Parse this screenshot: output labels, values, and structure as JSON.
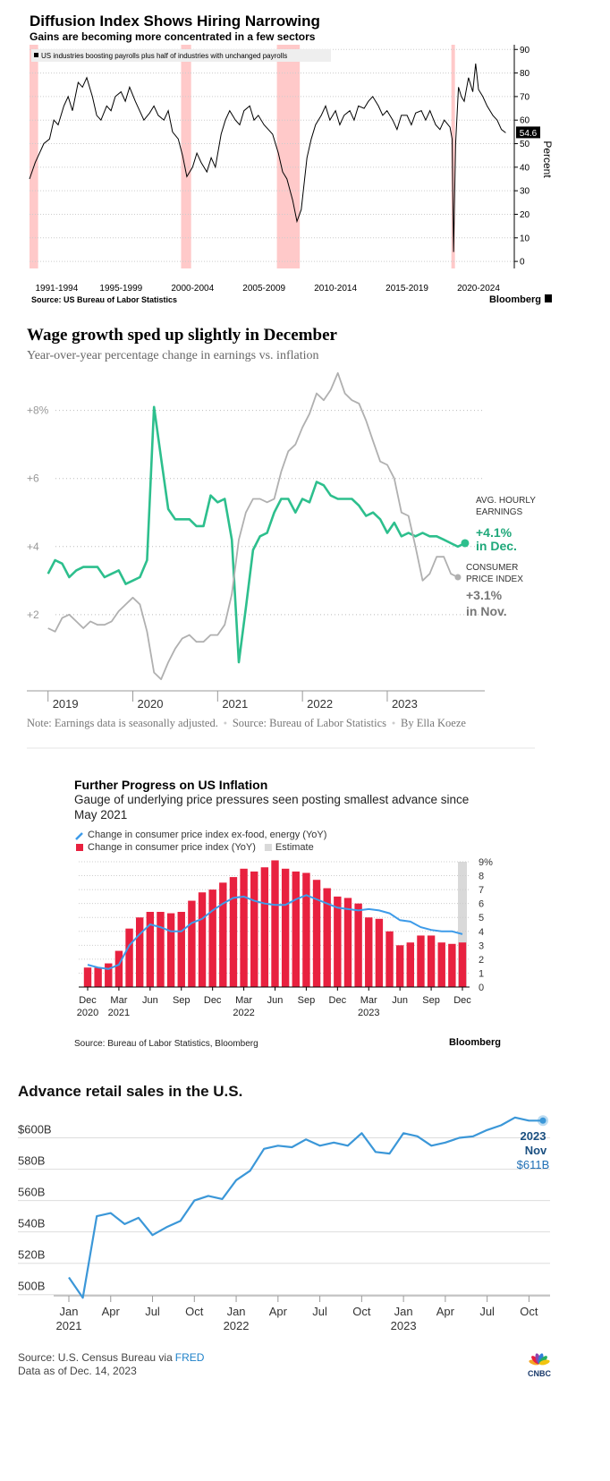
{
  "chart_data": [
    {
      "type": "line",
      "title": "Diffusion Index Shows Hiring Narrowing",
      "subtitle": "Gains are becoming more concentrated in a few sectors",
      "x": [
        1990.6,
        1991.0,
        1991.3,
        1991.6,
        1992.0,
        1992.3,
        1992.6,
        1993.0,
        1993.3,
        1993.6,
        1994.0,
        1994.3,
        1994.6,
        1995.0,
        1995.3,
        1995.6,
        1996.0,
        1996.3,
        1996.6,
        1997.0,
        1997.3,
        1997.6,
        1998.0,
        1998.3,
        1998.6,
        1999.0,
        1999.3,
        1999.6,
        2000.0,
        2000.3,
        2000.6,
        2001.0,
        2001.3,
        2001.6,
        2002.0,
        2002.3,
        2002.6,
        2003.0,
        2003.3,
        2003.6,
        2004.0,
        2004.3,
        2004.6,
        2005.0,
        2005.3,
        2005.6,
        2006.0,
        2006.3,
        2006.6,
        2007.0,
        2007.3,
        2007.6,
        2008.0,
        2008.3,
        2008.6,
        2009.0,
        2009.3,
        2009.6,
        2010.0,
        2010.3,
        2010.6,
        2011.0,
        2011.3,
        2011.6,
        2012.0,
        2012.3,
        2012.6,
        2013.0,
        2013.3,
        2013.6,
        2014.0,
        2014.3,
        2014.6,
        2015.0,
        2015.3,
        2015.6,
        2016.0,
        2016.3,
        2016.6,
        2017.0,
        2017.3,
        2017.6,
        2018.0,
        2018.3,
        2018.6,
        2019.0,
        2019.3,
        2019.6,
        2020.0,
        2020.15,
        2020.25,
        2020.4,
        2020.6,
        2020.8,
        2021.0,
        2021.3,
        2021.6,
        2021.8,
        2022.0,
        2022.3,
        2022.6,
        2023.0,
        2023.3,
        2023.6,
        2023.9
      ],
      "series": [
        {
          "name": "US industries boosting payrolls plus half of industries with unchanged payrolls",
          "color": "#000000",
          "values": [
            35,
            42,
            46,
            50,
            52,
            60,
            58,
            66,
            70,
            64,
            76,
            74,
            78,
            70,
            62,
            60,
            66,
            64,
            70,
            72,
            68,
            74,
            68,
            64,
            60,
            63,
            66,
            62,
            60,
            64,
            55,
            52,
            45,
            36,
            40,
            46,
            42,
            38,
            44,
            40,
            54,
            60,
            64,
            60,
            58,
            64,
            66,
            60,
            62,
            58,
            56,
            54,
            46,
            38,
            35,
            26,
            17,
            22,
            44,
            52,
            58,
            62,
            66,
            60,
            64,
            58,
            62,
            64,
            60,
            66,
            65,
            68,
            70,
            66,
            62,
            64,
            60,
            56,
            62,
            62,
            58,
            63,
            64,
            60,
            64,
            58,
            56,
            60,
            57,
            52,
            4,
            50,
            74,
            70,
            68,
            78,
            72,
            84,
            73,
            70,
            66,
            62,
            60,
            56,
            54.6
          ]
        }
      ],
      "xlim": [
        1990.6,
        2024.5
      ],
      "xticks": [
        {
          "value": 1992.5,
          "label": "1991-1994"
        },
        {
          "value": 1997,
          "label": "1995-1999"
        },
        {
          "value": 2002,
          "label": "2000-2004"
        },
        {
          "value": 2007,
          "label": "2005-2009"
        },
        {
          "value": 2012,
          "label": "2010-2014"
        },
        {
          "value": 2017,
          "label": "2015-2019"
        },
        {
          "value": 2022,
          "label": "2020-2024"
        }
      ],
      "ylim": [
        -3,
        92
      ],
      "yticks": [
        0,
        10,
        20,
        30,
        40,
        50,
        60,
        70,
        80,
        90
      ],
      "y_label": "Percent",
      "recessions": [
        [
          1990.6,
          1991.2
        ],
        [
          2001.2,
          2001.9
        ],
        [
          2007.9,
          2009.5
        ],
        [
          2020.1,
          2020.35
        ]
      ],
      "recession_color": "#ffc9c9",
      "source": "Source: US Bureau of Labor Statistics",
      "brand": "Bloomberg"
    },
    {
      "type": "line",
      "title": "Wage growth sped up slightly in December",
      "subtitle": "Year-over-year percentage change in earnings vs. inflation",
      "x": [
        2019.0,
        2019.083,
        2019.167,
        2019.25,
        2019.333,
        2019.417,
        2019.5,
        2019.583,
        2019.667,
        2019.75,
        2019.833,
        2019.917,
        2020.0,
        2020.083,
        2020.167,
        2020.25,
        2020.333,
        2020.417,
        2020.5,
        2020.583,
        2020.667,
        2020.75,
        2020.833,
        2020.917,
        2021.0,
        2021.083,
        2021.167,
        2021.25,
        2021.333,
        2021.417,
        2021.5,
        2021.583,
        2021.667,
        2021.75,
        2021.833,
        2021.917,
        2022.0,
        2022.083,
        2022.167,
        2022.25,
        2022.333,
        2022.417,
        2022.5,
        2022.583,
        2022.667,
        2022.75,
        2022.833,
        2022.917,
        2023.0,
        2023.083,
        2023.167,
        2023.25,
        2023.333,
        2023.417,
        2023.5,
        2023.583,
        2023.667,
        2023.75,
        2023.833,
        2023.917
      ],
      "series": [
        {
          "name": "AVG. HOURLY EARNINGS",
          "color": "#2dbf8d",
          "end_label": "+4.1%",
          "end_note": "in Dec.",
          "values": [
            3.2,
            3.6,
            3.5,
            3.1,
            3.3,
            3.4,
            3.4,
            3.4,
            3.1,
            3.2,
            3.3,
            2.9,
            3.0,
            3.1,
            3.6,
            8.1,
            6.6,
            5.1,
            4.8,
            4.8,
            4.8,
            4.6,
            4.6,
            5.5,
            5.3,
            5.4,
            4.2,
            0.6,
            2.2,
            3.9,
            4.3,
            4.4,
            5.0,
            5.4,
            5.4,
            5.0,
            5.4,
            5.3,
            5.9,
            5.8,
            5.5,
            5.4,
            5.4,
            5.4,
            5.2,
            4.9,
            5.0,
            4.8,
            4.4,
            4.7,
            4.3,
            4.4,
            4.3,
            4.4,
            4.3,
            4.3,
            4.2,
            4.1,
            4.0,
            4.1
          ]
        },
        {
          "name": "CONSUMER PRICE INDEX",
          "color": "#b0b0b0",
          "end_label": "+3.1%",
          "end_note": "in Nov.",
          "values": [
            1.6,
            1.5,
            1.9,
            2.0,
            1.8,
            1.6,
            1.8,
            1.7,
            1.7,
            1.8,
            2.1,
            2.3,
            2.5,
            2.3,
            1.5,
            0.3,
            0.1,
            0.6,
            1.0,
            1.3,
            1.4,
            1.2,
            1.2,
            1.4,
            1.4,
            1.7,
            2.6,
            4.2,
            5.0,
            5.4,
            5.4,
            5.3,
            5.4,
            6.2,
            6.8,
            7.0,
            7.5,
            7.9,
            8.5,
            8.3,
            8.6,
            9.1,
            8.5,
            8.3,
            8.2,
            7.7,
            7.1,
            6.5,
            6.4,
            6.0,
            5.0,
            4.9,
            4.0,
            3.0,
            3.2,
            3.7,
            3.7,
            3.2,
            3.1,
            null
          ]
        }
      ],
      "xlim": [
        2018.75,
        2024.15
      ],
      "xticks": [
        2019,
        2020,
        2021,
        2022,
        2023
      ],
      "ylim": [
        -0.24,
        9.2
      ],
      "yticks": [
        {
          "value": 2,
          "label": "+2"
        },
        {
          "value": 4,
          "label": "+4"
        },
        {
          "value": 6,
          "label": "+6"
        },
        {
          "value": 8,
          "label": "+8%"
        }
      ],
      "notes": [
        "Note: Earnings data is seasonally adjusted.",
        "Source: Bureau of Labor Statistics",
        "By Ella Koeze"
      ]
    },
    {
      "type": "combo",
      "title": "Further Progress on US Inflation",
      "subtitle": "Gauge of underlying price pressures seen posting smallest advance since May 2021",
      "categories": [
        "Dec 2020",
        null,
        null,
        "Mar 2021",
        null,
        null,
        "Jun",
        null,
        null,
        "Sep",
        null,
        null,
        "Dec",
        null,
        null,
        "Mar 2022",
        null,
        null,
        "Jun",
        null,
        null,
        "Sep",
        null,
        null,
        "Dec",
        null,
        null,
        "Mar 2023",
        null,
        null,
        "Jun",
        null,
        null,
        "Sep",
        null,
        null,
        "Dec"
      ],
      "series": [
        {
          "name": "Change in consumer price index ex-food, energy (YoY)",
          "mark": "line",
          "color": "#3d9be9",
          "values": [
            1.6,
            1.4,
            1.3,
            1.6,
            3.0,
            3.8,
            4.5,
            4.3,
            4.0,
            4.0,
            4.6,
            4.9,
            5.5,
            6.0,
            6.4,
            6.5,
            6.2,
            6.0,
            5.9,
            5.9,
            6.3,
            6.6,
            6.3,
            6.0,
            5.7,
            5.6,
            5.5,
            5.6,
            5.5,
            5.3,
            4.8,
            4.7,
            4.3,
            4.1,
            4.0,
            4.0,
            3.8
          ]
        },
        {
          "name": "Change in consumer price index (YoY)",
          "mark": "bar",
          "color": "#e8213f",
          "values": [
            1.4,
            1.4,
            1.7,
            2.6,
            4.2,
            5.0,
            5.4,
            5.4,
            5.3,
            5.4,
            6.2,
            6.8,
            7.0,
            7.5,
            7.9,
            8.5,
            8.3,
            8.6,
            9.1,
            8.5,
            8.3,
            8.2,
            7.7,
            7.1,
            6.5,
            6.4,
            6.0,
            5.0,
            4.9,
            4.0,
            3.0,
            3.2,
            3.7,
            3.7,
            3.2,
            3.1,
            3.2
          ]
        }
      ],
      "estimate": {
        "label": "Estimate",
        "from": 36,
        "color": "#d9d9d9"
      },
      "ylim": [
        0,
        9
      ],
      "yticks": [
        0,
        1,
        2,
        3,
        4,
        5,
        6,
        7,
        8,
        {
          "value": 9,
          "label": "9%"
        }
      ],
      "source": "Source: Bureau of Labor Statistics, Bloomberg",
      "brand": "Bloomberg"
    },
    {
      "type": "line",
      "title": "Advance retail sales in the U.S.",
      "categories": [
        "Jan 2021",
        null,
        null,
        "Apr",
        null,
        null,
        "Jul",
        null,
        null,
        "Oct",
        null,
        null,
        "Jan 2022",
        null,
        null,
        "Apr",
        null,
        null,
        "Jul",
        null,
        null,
        "Oct",
        null,
        null,
        "Jan 2023",
        null,
        null,
        "Apr",
        null,
        null,
        "Jul",
        null,
        null,
        "Oct",
        null
      ],
      "series": [
        {
          "name": "Advance retail sales",
          "color": "#3b97d8",
          "values": [
            511,
            498,
            550,
            552,
            545,
            549,
            538,
            543,
            547,
            560,
            563,
            561,
            573,
            579,
            593,
            595,
            594,
            599,
            595,
            597,
            595,
            603,
            591,
            590,
            603,
            601,
            595,
            597,
            600,
            601,
            605,
            608,
            613,
            611,
            611
          ]
        }
      ],
      "ylim": [
        497,
        618
      ],
      "yticks": [
        {
          "value": 500,
          "label": "500B"
        },
        {
          "value": 520,
          "label": "520B"
        },
        {
          "value": 540,
          "label": "540B"
        },
        {
          "value": 560,
          "label": "560B"
        },
        {
          "value": 580,
          "label": "580B"
        },
        {
          "value": 600,
          "label": "$600B"
        }
      ],
      "annotation": {
        "year": "2023",
        "month": "Nov",
        "label": "$611B"
      },
      "source": "Source: U.S. Census Bureau via ",
      "source_link": "FRED",
      "as_of": "Data as of Dec. 14, 2023",
      "logo": "CNBC"
    }
  ]
}
